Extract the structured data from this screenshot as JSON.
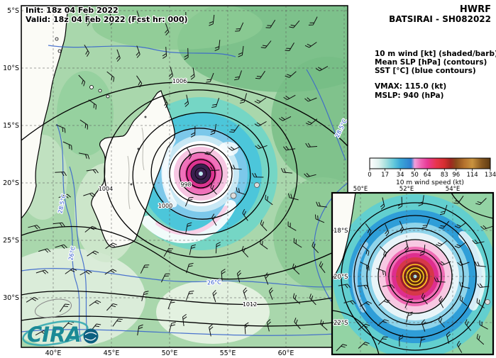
{
  "header": {
    "model": "HWRF",
    "storm": "BATSIRAI - SH082022",
    "init": "Init:  18z 04 Feb 2022",
    "valid": "Valid: 18z 04 Feb 2022 (Fcst hr: 000)"
  },
  "legend": {
    "line1": "10 m wind [kt] (shaded/barb)",
    "line2": "Mean SLP [hPa] (contours)",
    "line3": "SST [°C] (blue contours)",
    "vmax": "VMAX: 115.0 (kt)",
    "mslp": "MSLP:  940 (hPa)"
  },
  "branding": {
    "logo_text": "CIRA"
  },
  "chart_data": {
    "type": "heatmap",
    "title": "HWRF BATSIRAI - SH082022",
    "field": "10 m wind speed (kt)",
    "init_time": "18z 04 Feb 2022",
    "valid_time": "18z 04 Feb 2022 (Fcst hr: 000)",
    "vmax_kt": 115.0,
    "mslp_hpa": 940,
    "colorbar": {
      "label": "10 m wind speed (kt)",
      "min": 0,
      "max": 134,
      "ticks": [
        0,
        17,
        34,
        50,
        64,
        83,
        96,
        114,
        134
      ],
      "stops": [
        {
          "value": 0,
          "color": "#ffffff"
        },
        {
          "value": 10,
          "color": "#dff2ef"
        },
        {
          "value": 17,
          "color": "#aee3e0"
        },
        {
          "value": 27,
          "color": "#62c8dc"
        },
        {
          "value": 34,
          "color": "#3aa8d8"
        },
        {
          "value": 46,
          "color": "#2f7fd0"
        },
        {
          "value": 50,
          "color": "#f0a0dc"
        },
        {
          "value": 57,
          "color": "#ee64b4"
        },
        {
          "value": 64,
          "color": "#e83a96"
        },
        {
          "value": 74,
          "color": "#e8354c"
        },
        {
          "value": 83,
          "color": "#d42e30"
        },
        {
          "value": 90,
          "color": "#a02820"
        },
        {
          "value": 96,
          "color": "#8a4a1c"
        },
        {
          "value": 105,
          "color": "#b5722d"
        },
        {
          "value": 114,
          "color": "#c9933f"
        },
        {
          "value": 124,
          "color": "#8a5a20"
        },
        {
          "value": 134,
          "color": "#5e3a12"
        }
      ]
    },
    "main_map": {
      "lon_ticks": [
        "40°E",
        "45°E",
        "50°E",
        "55°E",
        "60°E"
      ],
      "lat_ticks": [
        "5°S",
        "10°S",
        "15°S",
        "20°S",
        "25°S",
        "30°S"
      ],
      "slp_labels": [
        "1006",
        "1004",
        "1000",
        "998",
        "1012"
      ],
      "sst_labels": [
        "28.5°C",
        "26°C",
        "28.5°C",
        "26°C"
      ]
    },
    "inset_map": {
      "lon_ticks": [
        "50°E",
        "52°E",
        "54°E"
      ],
      "lat_ticks": [
        "18°S",
        "20°S",
        "22°S"
      ]
    }
  }
}
